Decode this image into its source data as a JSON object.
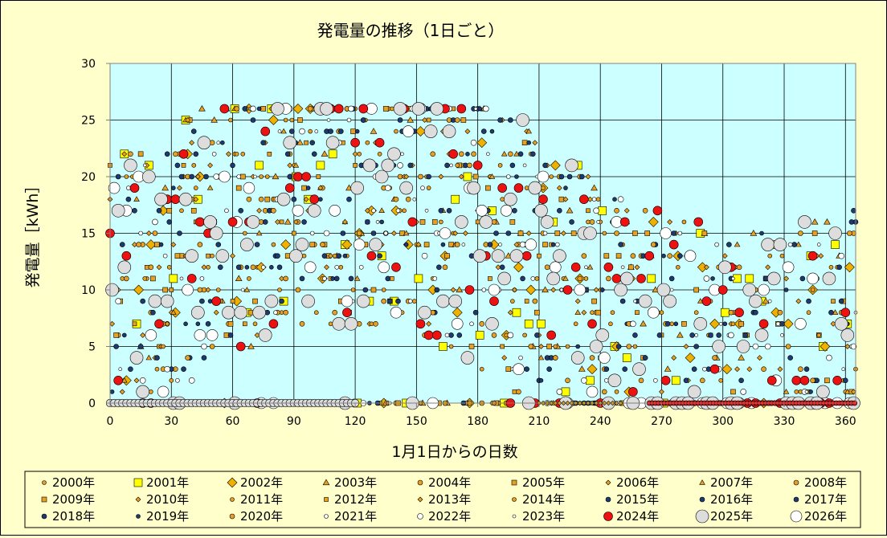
{
  "chart_data": {
    "type": "scatter",
    "title": "発電量の推移（1日ごと）",
    "xlabel": "1月1日からの日数",
    "ylabel": "発電量［kWh］",
    "xlim": [
      0,
      365
    ],
    "ylim": [
      0,
      30
    ],
    "x_ticks": [
      0,
      30,
      60,
      90,
      120,
      150,
      180,
      210,
      240,
      270,
      300,
      330,
      360
    ],
    "y_ticks": [
      0,
      5,
      10,
      15,
      20,
      25,
      30
    ],
    "grid": true,
    "plot_background": "#ccffff",
    "legend_position": "bottom",
    "series": [
      {
        "name": "2000年",
        "marker": "circle",
        "color": "#e8a020",
        "size": 5
      },
      {
        "name": "2001年",
        "marker": "square",
        "color": "#ffff00",
        "size": 10
      },
      {
        "name": "2002年",
        "marker": "diamond",
        "color": "#f0b000",
        "size": 10
      },
      {
        "name": "2003年",
        "marker": "triangle",
        "color": "#e8a020",
        "size": 7
      },
      {
        "name": "2004年",
        "marker": "circle",
        "color": "#e8a020",
        "size": 6
      },
      {
        "name": "2005年",
        "marker": "square",
        "color": "#e8a020",
        "size": 6
      },
      {
        "name": "2006年",
        "marker": "diamond",
        "color": "#e8a020",
        "size": 5
      },
      {
        "name": "2007年",
        "marker": "triangle",
        "color": "#e8a020",
        "size": 6
      },
      {
        "name": "2008年",
        "marker": "circle",
        "color": "#e8a020",
        "size": 6
      },
      {
        "name": "2009年",
        "marker": "square",
        "color": "#e8a020",
        "size": 6
      },
      {
        "name": "2010年",
        "marker": "diamond",
        "color": "#e8a020",
        "size": 5
      },
      {
        "name": "2011年",
        "marker": "circle",
        "color": "#e8a020",
        "size": 5
      },
      {
        "name": "2012年",
        "marker": "square",
        "color": "#e8a020",
        "size": 5
      },
      {
        "name": "2013年",
        "marker": "diamond",
        "color": "#e8a020",
        "size": 5
      },
      {
        "name": "2014年",
        "marker": "circle",
        "color": "#e8a020",
        "size": 5
      },
      {
        "name": "2015年",
        "marker": "circle",
        "color": "#1f3a6e",
        "size": 6
      },
      {
        "name": "2016年",
        "marker": "circle",
        "color": "#1f3a6e",
        "size": 6
      },
      {
        "name": "2017年",
        "marker": "circle",
        "color": "#1f3a6e",
        "size": 6
      },
      {
        "name": "2018年",
        "marker": "circle",
        "color": "#1f3a6e",
        "size": 6
      },
      {
        "name": "2019年",
        "marker": "circle",
        "color": "#1f3a6e",
        "size": 5
      },
      {
        "name": "2020年",
        "marker": "circle",
        "color": "#e8a020",
        "size": 6
      },
      {
        "name": "2021年",
        "marker": "circle",
        "color": "#ffffff",
        "size": 5
      },
      {
        "name": "2022年",
        "marker": "circle",
        "color": "#ffffff",
        "size": 7
      },
      {
        "name": "2023年",
        "marker": "circle",
        "color": "#ffffff",
        "size": 4
      },
      {
        "name": "2024年",
        "marker": "circle",
        "color": "#ee1111",
        "size": 11
      },
      {
        "name": "2025年",
        "marker": "circle",
        "color": "#dddddd",
        "size": 16
      },
      {
        "name": "2026年",
        "marker": "circle",
        "color": "#ffffff",
        "size": 14
      }
    ]
  }
}
